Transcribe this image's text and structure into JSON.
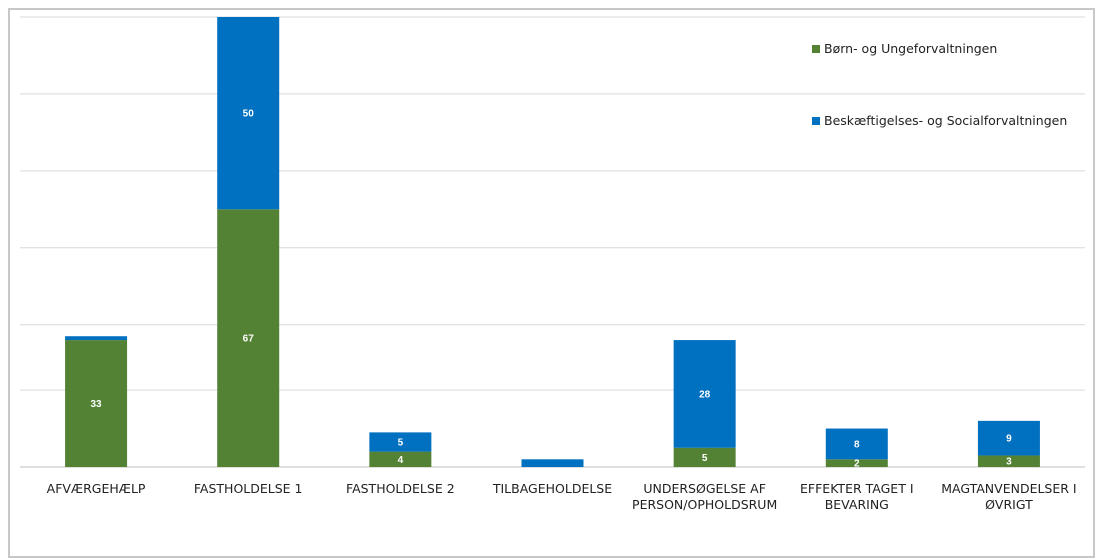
{
  "chart_data": {
    "type": "bar",
    "stacked": true,
    "title": "",
    "xlabel": "",
    "ylabel": "",
    "ylim": [
      0,
      117
    ],
    "grid": true,
    "legend_position": "top-right",
    "categories": [
      [
        "AFVÆRGEHÆLP"
      ],
      [
        "FASTHOLDELSE 1"
      ],
      [
        "FASTHOLDELSE 2"
      ],
      [
        "TILBAGEHOLDELSE"
      ],
      [
        "UNDERSØGELSE AF",
        "PERSON/OPHOLDSRUM"
      ],
      [
        "EFFEKTER TAGET I",
        "BEVARING"
      ],
      [
        "MAGTANVENDELSER I",
        "ØVRIGT"
      ]
    ],
    "series": [
      {
        "name": "Børn- og Ungeforvaltningen",
        "color": "#548235",
        "values": [
          33,
          67,
          4,
          0,
          5,
          2,
          3
        ],
        "labels": [
          "33",
          "67",
          "4",
          "",
          "5",
          "2",
          "3"
        ]
      },
      {
        "name": "Beskæftigelses- og Socialforvaltningen",
        "color": "#0070c0",
        "values": [
          1,
          50,
          5,
          2,
          28,
          8,
          9
        ],
        "labels": [
          "",
          "50",
          "5",
          "",
          "28",
          "8",
          "9"
        ]
      }
    ]
  }
}
